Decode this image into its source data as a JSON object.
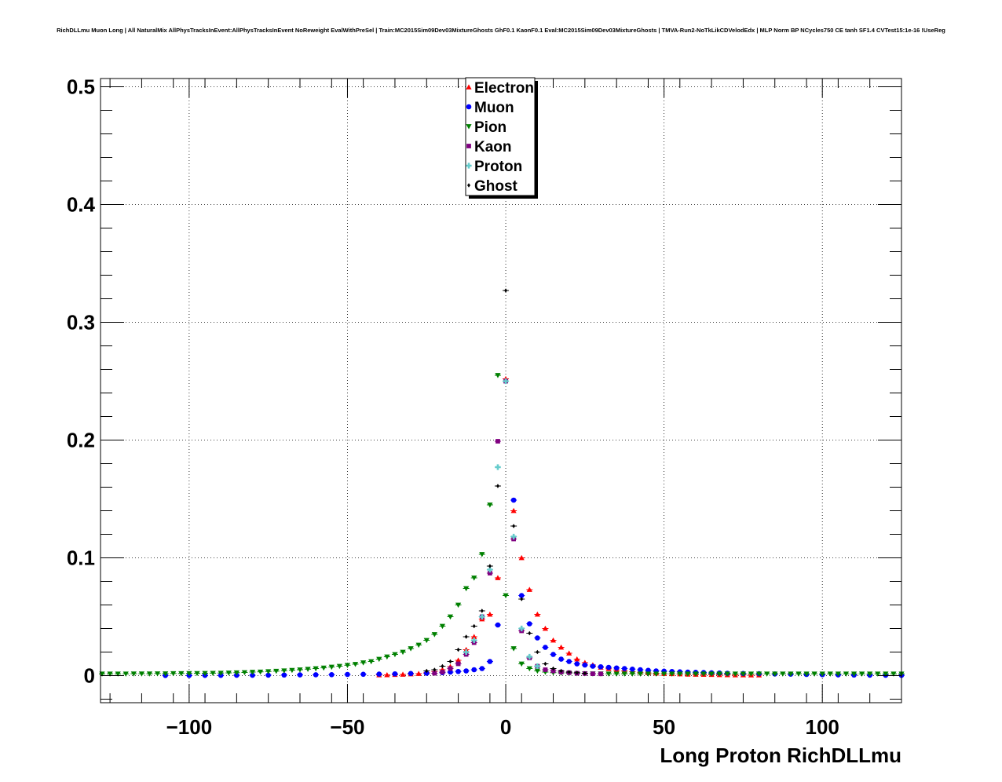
{
  "title": "RichDLLmu Muon Long | All NaturalMix AllPhysTracksInEvent:AllPhysTracksInEvent NoReweight EvalWithPreSel | Train:MC2015Sim09Dev03MixtureGhosts GhF0.1 KaonF0.1 Eval:MC2015Sim09Dev03MixtureGhosts | TMVA-Run2-NoTkLikCDVelodEdx | MLP Norm BP NCycles750 CE tanh SF1.4 CVTest15:1e-16 !UseReg",
  "chart_data": {
    "type": "scatter",
    "title": "RichDLLmu Muon Long | All NaturalMix AllPhysTracksInEvent:AllPhysTracksInEvent NoReweight EvalWithPreSel | Train:MC2015Sim09Dev03MixtureGhosts GhF0.1 KaonF0.1 Eval:MC2015Sim09Dev03MixtureGhosts | TMVA-Run2-NoTkLikCDVelodEdx | MLP Norm BP NCycles750 CE tanh SF1.4 CVTest15:1e-16 !UseReg",
    "xlabel": "Long Proton RichDLLmu",
    "ylabel": "",
    "xlim": [
      -128,
      125
    ],
    "ylim": [
      -0.023,
      0.507
    ],
    "x_ticks": [
      -100,
      -50,
      0,
      50,
      100
    ],
    "x_tick_labels": [
      "−100",
      "−50",
      "0",
      "50",
      "100"
    ],
    "y_ticks": [
      0,
      0.1,
      0.2,
      0.3,
      0.4,
      0.5
    ],
    "y_tick_labels": [
      "0",
      "0.1",
      "0.2",
      "0.3",
      "0.4",
      "0.5"
    ],
    "grid": true,
    "legend_position": "top-center",
    "series": [
      {
        "name": "Electron",
        "color": "#ff0000",
        "marker": "triangle-up",
        "x": [
          -40,
          -37.5,
          -35,
          -32.5,
          -30,
          -27.5,
          -25,
          -22.5,
          -20,
          -17.5,
          -15,
          -12.5,
          -10,
          -7.5,
          -5,
          -2.5,
          0,
          2.5,
          5,
          7.5,
          10,
          12.5,
          15,
          17.5,
          20,
          22.5,
          25,
          27.5,
          30,
          32.5,
          35,
          37.5,
          40,
          42.5,
          45,
          47.5,
          50,
          52.5,
          55,
          57.5,
          60,
          62.5,
          65,
          67.5,
          70,
          72.5,
          75,
          77.5,
          80
        ],
        "y": [
          0.0005,
          0.0006,
          0.0008,
          0.001,
          0.0013,
          0.0017,
          0.0025,
          0.0035,
          0.005,
          0.0075,
          0.013,
          0.022,
          0.033,
          0.048,
          0.052,
          0.083,
          0.252,
          0.14,
          0.1,
          0.073,
          0.052,
          0.04,
          0.03,
          0.024,
          0.019,
          0.014,
          0.011,
          0.009,
          0.007,
          0.0058,
          0.0048,
          0.004,
          0.0033,
          0.0028,
          0.0023,
          0.002,
          0.0017,
          0.0015,
          0.0013,
          0.0011,
          0.001,
          0.0009,
          0.0008,
          0.0007,
          0.0006,
          0.0005,
          0.0005,
          0.0004,
          0.0004
        ]
      },
      {
        "name": "Muon",
        "color": "#0000ff",
        "marker": "circle",
        "x": [
          -107.5,
          -100,
          -95,
          -90,
          -85,
          -80,
          -75,
          -70,
          -65,
          -60,
          -55,
          -50,
          -45,
          -40,
          -35,
          -30,
          -25,
          -20,
          -17.5,
          -15,
          -12.5,
          -10,
          -7.5,
          -5,
          -2.5,
          2.5,
          5,
          7.5,
          10,
          12.5,
          15,
          17.5,
          20,
          22.5,
          25,
          27.5,
          30,
          32.5,
          35,
          37.5,
          40,
          42.5,
          45,
          47.5,
          50,
          52.5,
          55,
          57.5,
          60,
          62.5,
          65,
          67.5,
          70,
          75,
          80,
          85,
          90,
          95,
          100,
          105,
          110,
          115,
          120,
          125
        ],
        "y": [
          0.0001,
          0.0001,
          0.0002,
          0.0002,
          0.0003,
          0.0003,
          0.0004,
          0.0005,
          0.0006,
          0.0007,
          0.0008,
          0.001,
          0.0011,
          0.0013,
          0.0015,
          0.0018,
          0.002,
          0.0025,
          0.003,
          0.0035,
          0.004,
          0.005,
          0.006,
          0.012,
          0.043,
          0.149,
          0.068,
          0.044,
          0.032,
          0.024,
          0.018,
          0.014,
          0.012,
          0.01,
          0.009,
          0.008,
          0.0075,
          0.007,
          0.0065,
          0.006,
          0.0055,
          0.005,
          0.0045,
          0.004,
          0.0038,
          0.0035,
          0.0032,
          0.003,
          0.0028,
          0.0026,
          0.0024,
          0.0022,
          0.002,
          0.0018,
          0.0016,
          0.0014,
          0.0012,
          0.001,
          0.0008,
          0.0006,
          0.0005,
          0.0004,
          0.0003,
          0.0002
        ]
      },
      {
        "name": "Pion",
        "color": "#008000",
        "marker": "triangle-down",
        "x": [
          -127.5,
          -125,
          -122.5,
          -120,
          -117.5,
          -115,
          -112.5,
          -110,
          -107.5,
          -105,
          -102.5,
          -100,
          -97.5,
          -95,
          -92.5,
          -90,
          -87.5,
          -85,
          -82.5,
          -80,
          -77.5,
          -75,
          -72.5,
          -70,
          -67.5,
          -65,
          -62.5,
          -60,
          -57.5,
          -55,
          -52.5,
          -50,
          -47.5,
          -45,
          -42.5,
          -40,
          -37.5,
          -35,
          -32.5,
          -30,
          -27.5,
          -25,
          -22.5,
          -20,
          -17.5,
          -15,
          -12.5,
          -10,
          -7.5,
          -5,
          -2.5,
          0,
          2.5,
          5,
          7.5,
          10,
          12.5,
          15,
          17.5,
          20,
          22.5,
          25,
          27.5,
          30,
          32.5,
          35,
          37.5,
          40,
          42.5,
          45,
          47.5,
          50,
          52.5,
          55,
          57.5,
          60,
          62.5,
          65,
          67.5,
          70,
          72.5,
          75,
          77.5,
          80,
          82.5,
          85,
          87.5,
          90,
          92.5,
          95,
          97.5,
          100,
          102.5,
          105,
          107.5,
          110,
          112.5,
          115,
          117.5,
          120,
          122.5,
          125
        ],
        "y": [
          0.0015,
          0.0015,
          0.0015,
          0.0015,
          0.0016,
          0.0016,
          0.0016,
          0.0017,
          0.0017,
          0.0018,
          0.0018,
          0.0019,
          0.0019,
          0.002,
          0.0021,
          0.0022,
          0.0023,
          0.0025,
          0.0027,
          0.003,
          0.0032,
          0.0035,
          0.0038,
          0.0042,
          0.0046,
          0.005,
          0.0055,
          0.006,
          0.0066,
          0.0073,
          0.008,
          0.0088,
          0.0097,
          0.011,
          0.012,
          0.014,
          0.016,
          0.018,
          0.02,
          0.023,
          0.026,
          0.03,
          0.035,
          0.042,
          0.05,
          0.06,
          0.074,
          0.083,
          0.103,
          0.145,
          0.255,
          0.068,
          0.023,
          0.01,
          0.006,
          0.004,
          0.003,
          0.0025,
          0.0022,
          0.002,
          0.0018,
          0.0017,
          0.0016,
          0.0016,
          0.0015,
          0.0015,
          0.0015,
          0.0015,
          0.0015,
          0.0015,
          0.0015,
          0.0015,
          0.0015,
          0.0015,
          0.0015,
          0.0015,
          0.0015,
          0.0015,
          0.0015,
          0.0015,
          0.0015,
          0.0015,
          0.0015,
          0.0015,
          0.0015,
          0.0015,
          0.0015,
          0.0015,
          0.0015,
          0.0015,
          0.0015,
          0.0015,
          0.0015,
          0.0015,
          0.0015,
          0.0015,
          0.0015,
          0.0015,
          0.0015,
          0.0015,
          0.0015,
          0.0015
        ]
      },
      {
        "name": "Kaon",
        "color": "#800080",
        "marker": "square",
        "x": [
          -22.5,
          -20,
          -17.5,
          -15,
          -12.5,
          -10,
          -7.5,
          -5,
          -2.5,
          0,
          2.5,
          5,
          7.5,
          10,
          12.5,
          15,
          17.5,
          20,
          22.5,
          25,
          27.5,
          30
        ],
        "y": [
          0.002,
          0.003,
          0.006,
          0.01,
          0.018,
          0.028,
          0.05,
          0.087,
          0.199,
          0.25,
          0.116,
          0.038,
          0.015,
          0.008,
          0.005,
          0.004,
          0.003,
          0.0025,
          0.002,
          0.0018,
          0.0016,
          0.0015
        ]
      },
      {
        "name": "Proton",
        "color": "#66cccc",
        "marker": "cross",
        "x": [
          -12.5,
          -10,
          -7.5,
          -5,
          -2.5,
          0,
          2.5,
          5,
          7.5,
          10
        ],
        "y": [
          0.02,
          0.03,
          0.05,
          0.09,
          0.177,
          0.25,
          0.118,
          0.04,
          0.016,
          0.008
        ]
      },
      {
        "name": "Ghost",
        "color": "#000000",
        "marker": "diamond",
        "x": [
          -25,
          -22.5,
          -20,
          -17.5,
          -15,
          -12.5,
          -10,
          -7.5,
          -5,
          -2.5,
          0,
          2.5,
          5,
          7.5,
          10,
          12.5,
          15,
          17.5,
          20,
          22.5,
          25
        ],
        "y": [
          0.004,
          0.005,
          0.008,
          0.012,
          0.022,
          0.033,
          0.042,
          0.055,
          0.093,
          0.161,
          0.327,
          0.127,
          0.065,
          0.036,
          0.02,
          0.01,
          0.006,
          0.004,
          0.003,
          0.0025,
          0.002
        ]
      }
    ]
  }
}
